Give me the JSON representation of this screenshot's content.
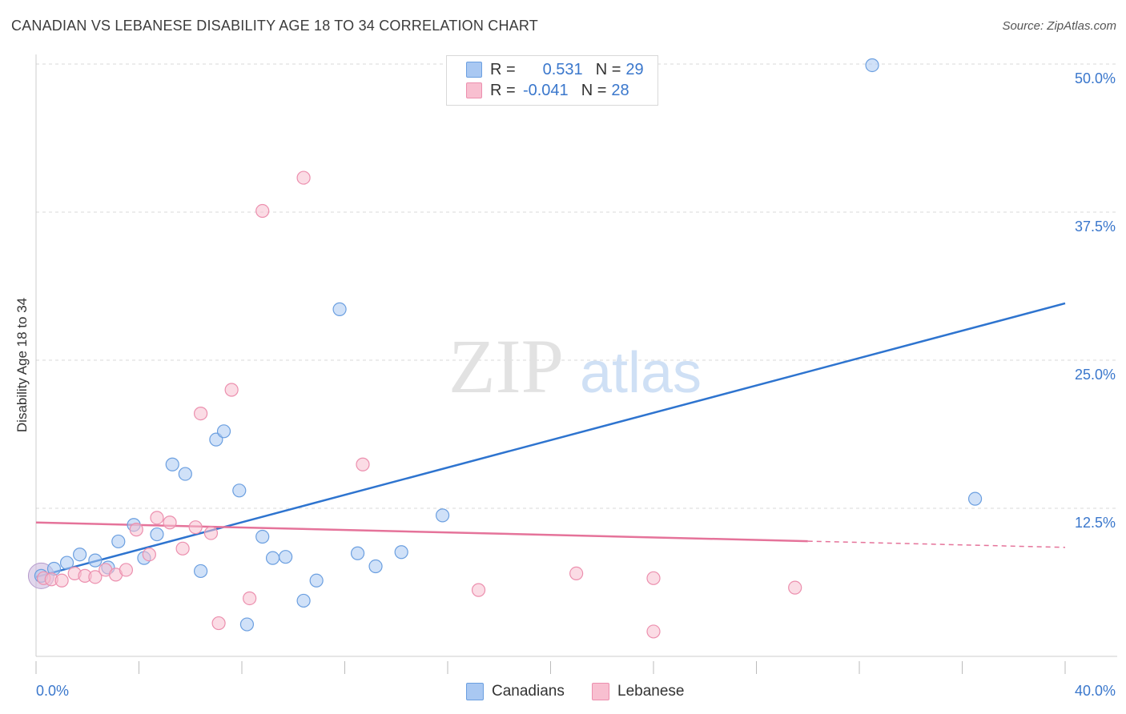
{
  "title": "CANADIAN VS LEBANESE DISABILITY AGE 18 TO 34 CORRELATION CHART",
  "source": "Source: ZipAtlas.com",
  "watermark": {
    "zip": "ZIP",
    "atlas": "atlas"
  },
  "legend": {
    "rows": [
      {
        "r_label": "R =",
        "r_value": "0.531",
        "n_label": "N =",
        "n_value": "29"
      },
      {
        "r_label": "R =",
        "r_value": "-0.041",
        "n_label": "N =",
        "n_value": "28"
      }
    ]
  },
  "bottom_legend": {
    "canadians": "Canadians",
    "lebanese": "Lebanese"
  },
  "colors": {
    "canadians_fill": "#a9c8f2",
    "canadians_stroke": "#6b9fe0",
    "canadians_line": "#2e74cf",
    "lebanese_fill": "#f8bfd0",
    "lebanese_stroke": "#ec8fae",
    "lebanese_line": "#e5739a",
    "axis_label": "#3a77cc",
    "grid": "#d9d9d9"
  },
  "chart_data": {
    "type": "scatter",
    "title": "CANADIAN VS LEBANESE DISABILITY AGE 18 TO 34 CORRELATION CHART",
    "xlabel": "",
    "ylabel": "Disability Age 18 to 34",
    "xlim": [
      0,
      40
    ],
    "ylim": [
      0,
      50
    ],
    "x_tick_labels": [
      "0.0%",
      "40.0%"
    ],
    "y_ticks": [
      12.5,
      25.0,
      37.5,
      50.0
    ],
    "y_tick_labels": [
      "12.5%",
      "25.0%",
      "37.5%",
      "50.0%"
    ],
    "grid": true,
    "legend_position": "top-center",
    "series": [
      {
        "name": "Canadians",
        "r": 0.531,
        "n": 29,
        "trend": {
          "x": [
            0,
            40
          ],
          "y": [
            6.7,
            29.8
          ],
          "dashed_from": null
        },
        "points": [
          [
            0.2,
            6.8
          ],
          [
            0.7,
            7.4
          ],
          [
            1.2,
            7.9
          ],
          [
            1.7,
            8.6
          ],
          [
            2.3,
            8.1
          ],
          [
            2.8,
            7.5
          ],
          [
            3.2,
            9.7
          ],
          [
            3.8,
            11.1
          ],
          [
            4.2,
            8.3
          ],
          [
            4.7,
            10.3
          ],
          [
            5.3,
            16.2
          ],
          [
            5.8,
            15.4
          ],
          [
            6.4,
            7.2
          ],
          [
            7.0,
            18.3
          ],
          [
            7.3,
            19.0
          ],
          [
            7.9,
            14.0
          ],
          [
            8.2,
            2.7
          ],
          [
            8.8,
            10.1
          ],
          [
            9.2,
            8.3
          ],
          [
            9.7,
            8.4
          ],
          [
            10.4,
            4.7
          ],
          [
            10.9,
            6.4
          ],
          [
            11.8,
            29.3
          ],
          [
            12.5,
            8.7
          ],
          [
            13.2,
            7.6
          ],
          [
            14.2,
            8.8
          ],
          [
            15.8,
            11.9
          ],
          [
            32.5,
            49.9
          ],
          [
            36.5,
            13.3
          ]
        ]
      },
      {
        "name": "Lebanese",
        "r": -0.041,
        "n": 28,
        "trend": {
          "x": [
            0,
            40
          ],
          "y": [
            11.3,
            9.2
          ],
          "dashed_from": 30.0
        },
        "points": [
          [
            0.3,
            6.6
          ],
          [
            0.6,
            6.5
          ],
          [
            1.0,
            6.4
          ],
          [
            1.5,
            7.0
          ],
          [
            1.9,
            6.8
          ],
          [
            2.3,
            6.7
          ],
          [
            2.7,
            7.3
          ],
          [
            3.1,
            6.9
          ],
          [
            3.5,
            7.3
          ],
          [
            3.9,
            10.7
          ],
          [
            4.4,
            8.6
          ],
          [
            4.7,
            11.7
          ],
          [
            5.2,
            11.3
          ],
          [
            5.7,
            9.1
          ],
          [
            6.2,
            10.9
          ],
          [
            6.4,
            20.5
          ],
          [
            6.8,
            10.4
          ],
          [
            7.1,
            2.8
          ],
          [
            7.6,
            22.5
          ],
          [
            8.3,
            4.9
          ],
          [
            8.8,
            37.6
          ],
          [
            10.4,
            40.4
          ],
          [
            12.7,
            16.2
          ],
          [
            17.2,
            5.6
          ],
          [
            21.0,
            7.0
          ],
          [
            24.0,
            6.6
          ],
          [
            24.0,
            2.1
          ],
          [
            29.5,
            5.8
          ]
        ]
      }
    ]
  }
}
